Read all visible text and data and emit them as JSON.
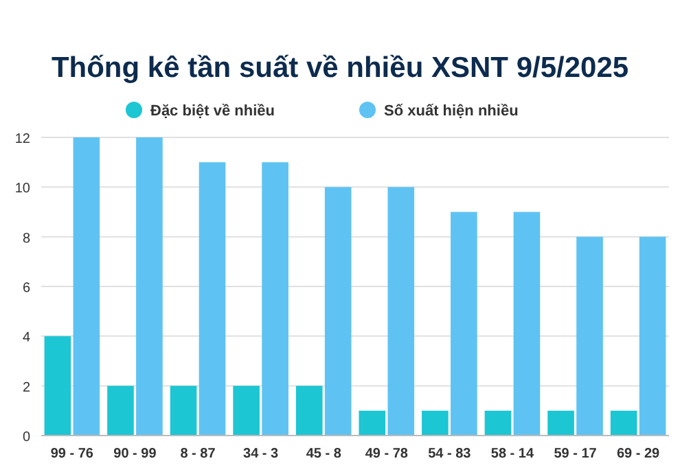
{
  "chart_data": {
    "type": "bar",
    "title": "Thống kê tần suất về nhiều XSNT 9/5/2025",
    "categories": [
      "99 - 76",
      "90 - 99",
      "8 - 87",
      "34 - 3",
      "45 - 8",
      "49 - 78",
      "54 - 83",
      "58 - 14",
      "59 - 17",
      "69 - 29"
    ],
    "series": [
      {
        "name": "Đặc biệt về nhiều",
        "color": "#1cc6d3",
        "values": [
          4,
          2,
          2,
          2,
          2,
          1,
          1,
          1,
          1,
          1
        ]
      },
      {
        "name": "Số xuất hiện nhiều",
        "color": "#5ec3f2",
        "values": [
          12,
          12,
          11,
          11,
          10,
          10,
          9,
          9,
          8,
          8
        ]
      }
    ],
    "ylim": [
      0,
      12
    ],
    "yticks": [
      0,
      2,
      4,
      6,
      8,
      10,
      12
    ],
    "grid": "y",
    "legend": "top"
  }
}
